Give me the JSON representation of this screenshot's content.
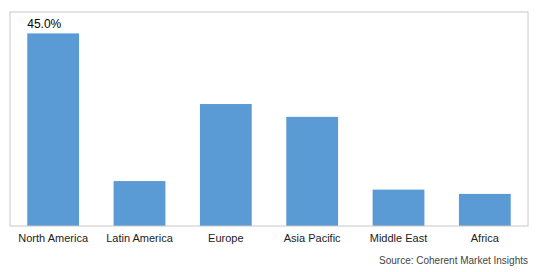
{
  "chart_data": {
    "type": "bar",
    "categories": [
      "North America",
      "Latin America",
      "Europe",
      "Asia Pacific",
      "Middle East",
      "Africa"
    ],
    "values": [
      45.0,
      10.5,
      28.5,
      25.5,
      8.5,
      7.5
    ],
    "color": "#5B9BD5",
    "ylim": [
      0,
      50
    ],
    "grid": false,
    "tick_labels": "x",
    "annotations": [
      {
        "text": "45.0%",
        "x": "North America",
        "y": 45.0
      }
    ],
    "source": "Source: Coherent Market Insights"
  }
}
